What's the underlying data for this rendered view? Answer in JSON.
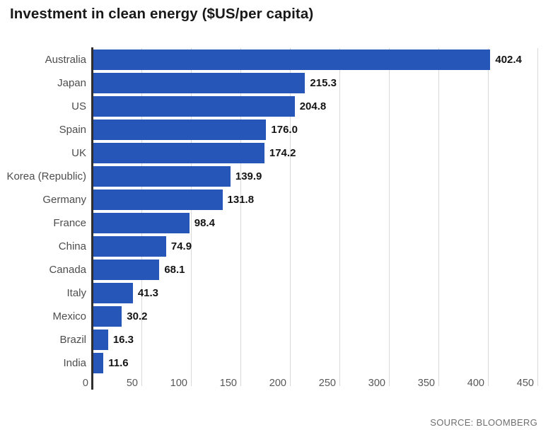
{
  "header": {
    "title": "Investment in clean energy ($US/per capita)"
  },
  "footer": {
    "source": "SOURCE: BLOOMBERG"
  },
  "chart_data": {
    "type": "bar",
    "orientation": "horizontal",
    "title": "Investment in clean energy ($US/per capita)",
    "xlabel": "",
    "ylabel": "",
    "categories": [
      "Australia",
      "Japan",
      "US",
      "Spain",
      "UK",
      "Korea (Republic)",
      "Germany",
      "France",
      "China",
      "Canada",
      "Italy",
      "Mexico",
      "Brazil",
      "India"
    ],
    "values": [
      402.4,
      215.3,
      204.8,
      176.0,
      174.2,
      139.9,
      131.8,
      98.4,
      74.9,
      68.1,
      41.3,
      30.2,
      16.3,
      11.6
    ],
    "value_labels": [
      "402.4",
      "215.3",
      "204.8",
      "176.0",
      "174.2",
      "139.9",
      "131.8",
      "98.4",
      "74.9",
      "68.1",
      "41.3",
      "30.2",
      "16.3",
      "11.6"
    ],
    "x_ticks": [
      0,
      50,
      100,
      150,
      200,
      250,
      300,
      350,
      400,
      450
    ],
    "xlim": [
      0,
      455
    ],
    "grid": true,
    "legend": false,
    "source": "SOURCE: BLOOMBERG"
  },
  "colors": {
    "bar": "#2657b8",
    "title": "#191919",
    "category_label": "#4d4d4d",
    "value_label": "#141414",
    "tick_label": "#575757",
    "gridline": "#d9d9d9",
    "axis_line": "#2f2f2f",
    "source": "#6e6e6e",
    "background": "#ffffff"
  }
}
